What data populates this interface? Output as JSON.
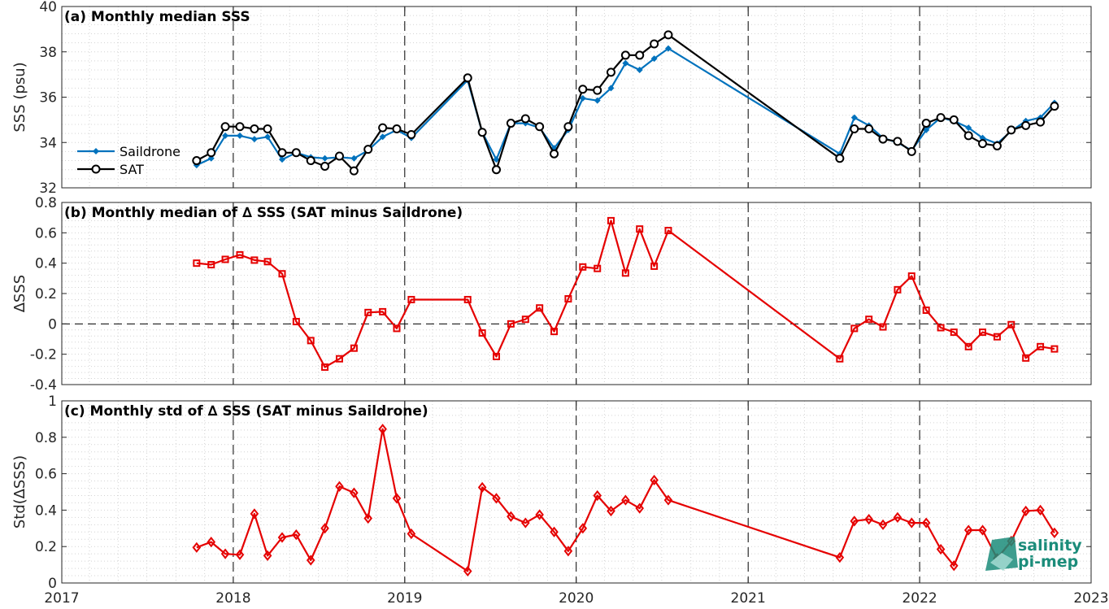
{
  "colors": {
    "saildrone": "#0072BD",
    "sat": "#000000",
    "delta": "#E50000",
    "logo": "#1B8C7A"
  },
  "logo": {
    "line1": "salinity",
    "line2": "pi-mep"
  },
  "x_axis": {
    "ticks": [
      "2017",
      "2018",
      "2019",
      "2020",
      "2021",
      "2022",
      "2023"
    ],
    "range": [
      "2017-01-01",
      "2023-01-01"
    ],
    "dashed_year_lines": [
      "2018-01-01",
      "2019-01-01",
      "2020-01-01",
      "2021-01-01",
      "2022-01-01"
    ]
  },
  "chart_data": [
    {
      "type": "line",
      "title": "(a) Monthly median SSS",
      "ylabel": "SSS (psu)",
      "ylim": [
        32,
        40
      ],
      "yticks": [
        "32",
        "34",
        "36",
        "38",
        "40"
      ],
      "grid": true,
      "legend": "left",
      "x": [
        "2017-10",
        "2017-11",
        "2017-12",
        "2018-01",
        "2018-02",
        "2018-03",
        "2018-04",
        "2018-05",
        "2018-06",
        "2018-07",
        "2018-08",
        "2018-09",
        "2018-10",
        "2018-11",
        "2018-12",
        "2019-01",
        "2019-05",
        "2019-06",
        "2019-07",
        "2019-08",
        "2019-09",
        "2019-10",
        "2019-11",
        "2019-12",
        "2020-01",
        "2020-02",
        "2020-03",
        "2020-04",
        "2020-05",
        "2020-06",
        "2020-07",
        "2021-07",
        "2021-08",
        "2021-09",
        "2021-10",
        "2021-11",
        "2021-12",
        "2022-01",
        "2022-02",
        "2022-03",
        "2022-04",
        "2022-05",
        "2022-06",
        "2022-07",
        "2022-08",
        "2022-09",
        "2022-10"
      ],
      "series": [
        {
          "name": "Saildrone",
          "marker": "dot",
          "values": [
            33.0,
            33.3,
            34.3,
            34.3,
            34.15,
            34.25,
            33.25,
            33.55,
            33.35,
            33.3,
            33.35,
            33.3,
            33.65,
            34.25,
            34.55,
            34.2,
            36.75,
            34.45,
            33.25,
            34.85,
            34.85,
            34.65,
            33.75,
            34.55,
            35.95,
            35.85,
            36.4,
            37.5,
            37.2,
            37.7,
            38.15,
            33.5,
            35.1,
            34.75,
            34.2,
            34.0,
            33.65,
            34.55,
            35.1,
            34.95,
            34.65,
            34.2,
            33.95,
            34.5,
            34.95,
            35.1,
            35.75
          ]
        },
        {
          "name": "SAT",
          "marker": "circle",
          "values": [
            33.2,
            33.55,
            34.7,
            34.7,
            34.6,
            34.6,
            33.55,
            33.55,
            33.2,
            32.95,
            33.4,
            32.75,
            33.7,
            34.65,
            34.6,
            34.35,
            36.85,
            34.45,
            32.8,
            34.85,
            35.05,
            34.7,
            33.5,
            34.7,
            36.35,
            36.3,
            37.1,
            37.85,
            37.85,
            38.35,
            38.75,
            33.3,
            34.6,
            34.6,
            34.15,
            34.05,
            33.6,
            34.85,
            35.1,
            35.0,
            34.3,
            33.95,
            33.85,
            34.55,
            34.75,
            34.9,
            35.6
          ]
        }
      ]
    },
    {
      "type": "line",
      "title": "(b) Monthly median of ∆ SSS (SAT minus Saildrone)",
      "ylabel": "∆SSS",
      "ylim": [
        -0.4,
        0.8
      ],
      "yticks": [
        "-0.4",
        "-0.2",
        "0",
        "0.2",
        "0.4",
        "0.6",
        "0.8"
      ],
      "grid": true,
      "zero_line": true,
      "x": [
        "2017-10",
        "2017-11",
        "2017-12",
        "2018-01",
        "2018-02",
        "2018-03",
        "2018-04",
        "2018-05",
        "2018-06",
        "2018-07",
        "2018-08",
        "2018-09",
        "2018-10",
        "2018-11",
        "2018-12",
        "2019-01",
        "2019-05",
        "2019-06",
        "2019-07",
        "2019-08",
        "2019-09",
        "2019-10",
        "2019-11",
        "2019-12",
        "2020-01",
        "2020-02",
        "2020-03",
        "2020-04",
        "2020-05",
        "2020-06",
        "2020-07",
        "2021-07",
        "2021-08",
        "2021-09",
        "2021-10",
        "2021-11",
        "2021-12",
        "2022-01",
        "2022-02",
        "2022-03",
        "2022-04",
        "2022-05",
        "2022-06",
        "2022-07",
        "2022-08",
        "2022-09",
        "2022-10"
      ],
      "series": [
        {
          "marker": "square",
          "values": [
            0.4,
            0.39,
            0.425,
            0.455,
            0.42,
            0.41,
            0.33,
            0.015,
            -0.11,
            -0.285,
            -0.23,
            -0.16,
            0.075,
            0.08,
            -0.03,
            0.16,
            0.16,
            -0.06,
            -0.215,
            0.0,
            0.03,
            0.105,
            -0.05,
            0.165,
            0.375,
            0.365,
            0.68,
            0.335,
            0.625,
            0.38,
            0.615,
            -0.23,
            -0.03,
            0.03,
            -0.02,
            0.225,
            0.315,
            0.09,
            -0.025,
            -0.055,
            -0.15,
            -0.055,
            -0.085,
            -0.005,
            -0.225,
            -0.15,
            -0.165
          ]
        }
      ]
    },
    {
      "type": "line",
      "title": "(c) Monthly std of ∆ SSS (SAT minus Saildrone)",
      "ylabel": "Std(∆SSS)",
      "ylim": [
        0,
        1
      ],
      "yticks": [
        "0",
        "0.2",
        "0.4",
        "0.6",
        "0.8",
        "1"
      ],
      "grid": true,
      "x": [
        "2017-10",
        "2017-11",
        "2017-12",
        "2018-01",
        "2018-02",
        "2018-03",
        "2018-04",
        "2018-05",
        "2018-06",
        "2018-07",
        "2018-08",
        "2018-09",
        "2018-10",
        "2018-11",
        "2018-12",
        "2019-01",
        "2019-05",
        "2019-06",
        "2019-07",
        "2019-08",
        "2019-09",
        "2019-10",
        "2019-11",
        "2019-12",
        "2020-01",
        "2020-02",
        "2020-03",
        "2020-04",
        "2020-05",
        "2020-06",
        "2020-07",
        "2021-07",
        "2021-08",
        "2021-09",
        "2021-10",
        "2021-11",
        "2021-12",
        "2022-01",
        "2022-02",
        "2022-03",
        "2022-04",
        "2022-05",
        "2022-06",
        "2022-07",
        "2022-08",
        "2022-09",
        "2022-10"
      ],
      "series": [
        {
          "marker": "diamond",
          "values": [
            0.195,
            0.225,
            0.16,
            0.155,
            0.38,
            0.15,
            0.25,
            0.265,
            0.125,
            0.3,
            0.53,
            0.495,
            0.355,
            0.845,
            0.465,
            0.27,
            0.065,
            0.525,
            0.465,
            0.365,
            0.33,
            0.375,
            0.28,
            0.175,
            0.3,
            0.48,
            0.395,
            0.455,
            0.41,
            0.565,
            0.455,
            0.14,
            0.34,
            0.35,
            0.32,
            0.36,
            0.33,
            0.33,
            0.185,
            0.095,
            0.29,
            0.29,
            0.135,
            0.23,
            0.395,
            0.4,
            0.275
          ]
        }
      ]
    }
  ]
}
